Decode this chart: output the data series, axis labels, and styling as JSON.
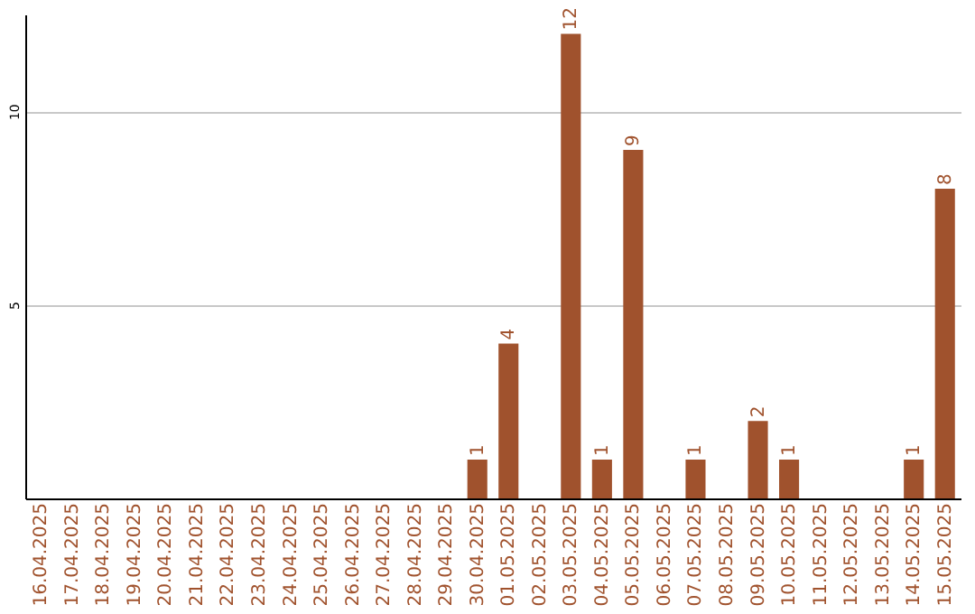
{
  "chart_data": {
    "type": "bar",
    "categories": [
      "16.04.2025",
      "17.04.2025",
      "18.04.2025",
      "19.04.2025",
      "20.04.2025",
      "21.04.2025",
      "22.04.2025",
      "23.04.2025",
      "24.04.2025",
      "25.04.2025",
      "26.04.2025",
      "27.04.2025",
      "28.04.2025",
      "29.04.2025",
      "30.04.2025",
      "01.05.2025",
      "02.05.2025",
      "03.05.2025",
      "04.05.2025",
      "05.05.2025",
      "06.05.2025",
      "07.05.2025",
      "08.05.2025",
      "09.05.2025",
      "10.05.2025",
      "11.05.2025",
      "12.05.2025",
      "13.05.2025",
      "14.05.2025",
      "15.05.2025"
    ],
    "values": [
      0,
      0,
      0,
      0,
      0,
      0,
      0,
      0,
      0,
      0,
      0,
      0,
      0,
      0,
      1,
      4,
      0,
      12,
      1,
      9,
      0,
      1,
      0,
      2,
      1,
      0,
      0,
      0,
      1,
      8
    ],
    "value_labels": [
      null,
      null,
      null,
      null,
      null,
      null,
      null,
      null,
      null,
      null,
      null,
      null,
      null,
      null,
      "1",
      "4",
      null,
      "12",
      "1",
      "9",
      null,
      "1",
      null,
      "2",
      "1",
      null,
      null,
      null,
      "1",
      "8"
    ],
    "color": "#a0522d",
    "ylim": [
      0,
      12.5
    ],
    "yticks": [
      5,
      10
    ],
    "grid": "y"
  }
}
